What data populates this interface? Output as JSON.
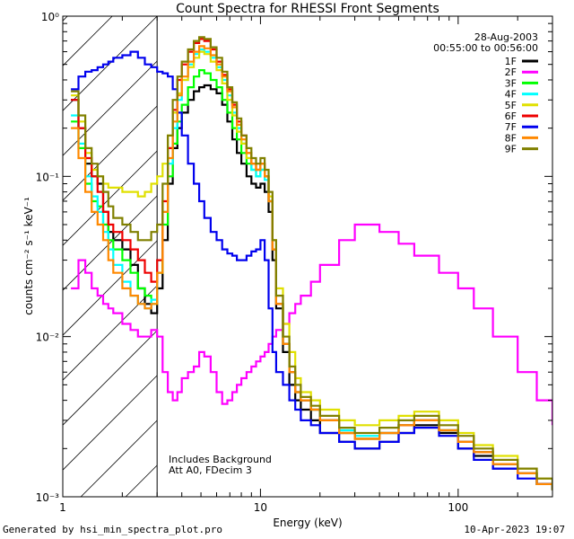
{
  "chart_data": {
    "type": "line",
    "title": "Count Spectra for RHESSI Front Segments",
    "xlabel": "Energy (keV)",
    "ylabel": "counts cm⁻² s⁻¹ keV⁻¹",
    "xscale": "log",
    "yscale": "log",
    "xlim": [
      1,
      300
    ],
    "ylim": [
      0.001,
      1
    ],
    "x_ticks": [
      "1",
      "10",
      "100"
    ],
    "y_ticks": [
      "10⁻³",
      "10⁻²",
      "10⁻¹",
      "10⁰"
    ],
    "date": "28-Aug-2003",
    "time_range": "00:55:00 to 00:56:00",
    "excluded_region_kev": [
      1,
      3
    ],
    "annotations": [
      "Includes Background",
      "Att A0, FDecim 3"
    ],
    "legend_position": "top-right",
    "series": [
      {
        "name": "1F",
        "color": "#000000",
        "x": [
          1.1,
          1.2,
          1.3,
          1.4,
          1.5,
          1.6,
          1.7,
          1.8,
          2.0,
          2.2,
          2.4,
          2.6,
          2.8,
          3.0,
          3.2,
          3.4,
          3.6,
          3.8,
          4.0,
          4.3,
          4.6,
          4.9,
          5.2,
          5.6,
          6.0,
          6.4,
          6.8,
          7.2,
          7.6,
          8.0,
          8.5,
          9.0,
          9.5,
          10,
          10.5,
          11,
          11.5,
          12,
          13,
          14,
          15,
          16,
          18,
          20,
          25,
          30,
          40,
          50,
          60,
          80,
          100,
          120,
          150,
          200,
          250,
          300
        ],
        "y": [
          0.3,
          0.2,
          0.12,
          0.1,
          0.09,
          0.06,
          0.045,
          0.04,
          0.035,
          0.028,
          0.02,
          0.016,
          0.014,
          0.02,
          0.04,
          0.09,
          0.15,
          0.2,
          0.25,
          0.3,
          0.34,
          0.36,
          0.37,
          0.35,
          0.33,
          0.28,
          0.22,
          0.17,
          0.14,
          0.12,
          0.1,
          0.09,
          0.085,
          0.09,
          0.08,
          0.06,
          0.03,
          0.015,
          0.008,
          0.005,
          0.004,
          0.0035,
          0.003,
          0.0025,
          0.0022,
          0.002,
          0.0022,
          0.0025,
          0.0028,
          0.0025,
          0.002,
          0.0018,
          0.0015,
          0.0014,
          0.0012,
          0.0011
        ]
      },
      {
        "name": "2F",
        "color": "#ff00ff",
        "x": [
          1.1,
          1.2,
          1.3,
          1.4,
          1.5,
          1.6,
          1.7,
          1.8,
          2.0,
          2.2,
          2.4,
          2.6,
          2.8,
          3.0,
          3.2,
          3.4,
          3.6,
          3.8,
          4.0,
          4.3,
          4.6,
          4.9,
          5.2,
          5.6,
          6.0,
          6.4,
          6.8,
          7.2,
          7.6,
          8.0,
          8.5,
          9.0,
          9.5,
          10,
          10.5,
          11,
          11.5,
          12,
          13,
          14,
          15,
          16,
          18,
          20,
          25,
          30,
          40,
          50,
          60,
          80,
          100,
          120,
          150,
          200,
          250,
          300
        ],
        "y": [
          0.02,
          0.03,
          0.025,
          0.02,
          0.018,
          0.016,
          0.015,
          0.014,
          0.012,
          0.011,
          0.01,
          0.01,
          0.011,
          0.01,
          0.006,
          0.0045,
          0.004,
          0.0045,
          0.0055,
          0.006,
          0.0065,
          0.008,
          0.0075,
          0.006,
          0.0045,
          0.0038,
          0.004,
          0.0045,
          0.005,
          0.0055,
          0.006,
          0.0065,
          0.007,
          0.0075,
          0.008,
          0.009,
          0.01,
          0.011,
          0.012,
          0.014,
          0.016,
          0.018,
          0.022,
          0.028,
          0.04,
          0.05,
          0.045,
          0.038,
          0.032,
          0.025,
          0.02,
          0.015,
          0.01,
          0.006,
          0.004,
          0.0028
        ]
      },
      {
        "name": "3F",
        "color": "#00ff00",
        "x": [
          1.1,
          1.2,
          1.3,
          1.4,
          1.5,
          1.6,
          1.7,
          1.8,
          2.0,
          2.2,
          2.4,
          2.6,
          2.8,
          3.0,
          3.2,
          3.4,
          3.6,
          3.8,
          4.0,
          4.3,
          4.6,
          4.9,
          5.2,
          5.6,
          6.0,
          6.4,
          6.8,
          7.2,
          7.6,
          8.0,
          8.5,
          9.0,
          9.5,
          10,
          10.5,
          11,
          11.5,
          12,
          13,
          14,
          15,
          16,
          18,
          20,
          25,
          30,
          40,
          50,
          60,
          80,
          100,
          120,
          150,
          200,
          250,
          300
        ],
        "y": [
          0.22,
          0.15,
          0.09,
          0.07,
          0.065,
          0.05,
          0.04,
          0.035,
          0.03,
          0.025,
          0.02,
          0.018,
          0.016,
          0.025,
          0.05,
          0.1,
          0.16,
          0.22,
          0.28,
          0.36,
          0.42,
          0.46,
          0.44,
          0.4,
          0.36,
          0.3,
          0.25,
          0.2,
          0.17,
          0.14,
          0.12,
          0.11,
          0.1,
          0.11,
          0.1,
          0.07,
          0.035,
          0.016,
          0.009,
          0.006,
          0.0045,
          0.004,
          0.0035,
          0.003,
          0.0025,
          0.0023,
          0.0025,
          0.0028,
          0.003,
          0.0026,
          0.0022,
          0.0019,
          0.0016,
          0.0014,
          0.0012,
          0.0011
        ]
      },
      {
        "name": "4F",
        "color": "#00ffff",
        "x": [
          1.1,
          1.2,
          1.3,
          1.4,
          1.5,
          1.6,
          1.7,
          1.8,
          2.0,
          2.2,
          2.4,
          2.6,
          2.8,
          3.0,
          3.2,
          3.4,
          3.6,
          3.8,
          4.0,
          4.3,
          4.6,
          4.9,
          5.2,
          5.6,
          6.0,
          6.4,
          6.8,
          7.2,
          7.6,
          8.0,
          8.5,
          9.0,
          9.5,
          10,
          10.5,
          11,
          11.5,
          12,
          13,
          14,
          15,
          16,
          18,
          20,
          25,
          30,
          40,
          50,
          60,
          80,
          100,
          120,
          150,
          200,
          250,
          300
        ],
        "y": [
          0.24,
          0.16,
          0.1,
          0.075,
          0.06,
          0.045,
          0.035,
          0.028,
          0.022,
          0.018,
          0.016,
          0.015,
          0.017,
          0.03,
          0.06,
          0.12,
          0.2,
          0.3,
          0.4,
          0.5,
          0.58,
          0.62,
          0.6,
          0.55,
          0.48,
          0.4,
          0.32,
          0.25,
          0.2,
          0.16,
          0.13,
          0.11,
          0.1,
          0.11,
          0.095,
          0.07,
          0.035,
          0.016,
          0.009,
          0.006,
          0.0045,
          0.004,
          0.0035,
          0.003,
          0.0026,
          0.0024,
          0.0025,
          0.0028,
          0.003,
          0.0026,
          0.0022,
          0.0019,
          0.0016,
          0.0014,
          0.0012,
          0.0011
        ]
      },
      {
        "name": "5F",
        "color": "#e0e000",
        "x": [
          1.1,
          1.2,
          1.3,
          1.4,
          1.5,
          1.6,
          1.7,
          1.8,
          2.0,
          2.2,
          2.4,
          2.6,
          2.8,
          3.0,
          3.2,
          3.4,
          3.6,
          3.8,
          4.0,
          4.3,
          4.6,
          4.9,
          5.2,
          5.6,
          6.0,
          6.4,
          6.8,
          7.2,
          7.6,
          8.0,
          8.5,
          9.0,
          9.5,
          10,
          10.5,
          11,
          11.5,
          12,
          13,
          14,
          15,
          16,
          18,
          20,
          25,
          30,
          40,
          50,
          60,
          80,
          100,
          120,
          150,
          200,
          250,
          300
        ],
        "y": [
          0.32,
          0.22,
          0.14,
          0.11,
          0.1,
          0.09,
          0.085,
          0.085,
          0.08,
          0.08,
          0.075,
          0.08,
          0.09,
          0.1,
          0.12,
          0.18,
          0.25,
          0.33,
          0.4,
          0.48,
          0.55,
          0.6,
          0.58,
          0.52,
          0.46,
          0.38,
          0.3,
          0.24,
          0.19,
          0.16,
          0.13,
          0.12,
          0.11,
          0.12,
          0.1,
          0.075,
          0.04,
          0.02,
          0.012,
          0.008,
          0.0055,
          0.0045,
          0.004,
          0.0035,
          0.003,
          0.0028,
          0.003,
          0.0032,
          0.0034,
          0.003,
          0.0025,
          0.0021,
          0.0018,
          0.0015,
          0.0013,
          0.0011
        ]
      },
      {
        "name": "6F",
        "color": "#ee0000",
        "x": [
          1.1,
          1.2,
          1.3,
          1.4,
          1.5,
          1.6,
          1.7,
          1.8,
          2.0,
          2.2,
          2.4,
          2.6,
          2.8,
          3.0,
          3.2,
          3.4,
          3.6,
          3.8,
          4.0,
          4.3,
          4.6,
          4.9,
          5.2,
          5.6,
          6.0,
          6.4,
          6.8,
          7.2,
          7.6,
          8.0,
          8.5,
          9.0,
          9.5,
          10,
          10.5,
          11,
          11.5,
          12,
          13,
          14,
          15,
          16,
          18,
          20,
          25,
          30,
          40,
          50,
          60,
          80,
          100,
          120,
          150,
          200,
          250,
          300
        ],
        "y": [
          0.3,
          0.2,
          0.13,
          0.1,
          0.08,
          0.06,
          0.05,
          0.045,
          0.04,
          0.035,
          0.03,
          0.025,
          0.022,
          0.03,
          0.07,
          0.15,
          0.26,
          0.4,
          0.5,
          0.6,
          0.68,
          0.72,
          0.7,
          0.62,
          0.52,
          0.43,
          0.35,
          0.28,
          0.22,
          0.18,
          0.14,
          0.12,
          0.11,
          0.12,
          0.1,
          0.07,
          0.035,
          0.016,
          0.009,
          0.006,
          0.0045,
          0.004,
          0.0035,
          0.003,
          0.0025,
          0.0023,
          0.0025,
          0.0028,
          0.003,
          0.0026,
          0.0022,
          0.0019,
          0.0016,
          0.0014,
          0.0012,
          0.0011
        ]
      },
      {
        "name": "7F",
        "color": "#0000ee",
        "x": [
          1.1,
          1.2,
          1.3,
          1.4,
          1.5,
          1.6,
          1.7,
          1.8,
          2.0,
          2.2,
          2.4,
          2.6,
          2.8,
          3.0,
          3.2,
          3.4,
          3.6,
          3.8,
          4.0,
          4.3,
          4.6,
          4.9,
          5.2,
          5.6,
          6.0,
          6.4,
          6.8,
          7.2,
          7.6,
          8.0,
          8.5,
          9.0,
          9.5,
          10,
          10.5,
          11,
          11.5,
          12,
          13,
          14,
          15,
          16,
          18,
          20,
          25,
          30,
          40,
          50,
          60,
          80,
          100,
          120,
          150,
          200,
          250,
          300
        ],
        "y": [
          0.35,
          0.42,
          0.45,
          0.46,
          0.48,
          0.5,
          0.52,
          0.55,
          0.57,
          0.6,
          0.55,
          0.5,
          0.48,
          0.45,
          0.44,
          0.42,
          0.35,
          0.25,
          0.18,
          0.12,
          0.09,
          0.07,
          0.055,
          0.045,
          0.04,
          0.035,
          0.033,
          0.032,
          0.03,
          0.03,
          0.032,
          0.034,
          0.035,
          0.04,
          0.03,
          0.015,
          0.008,
          0.006,
          0.005,
          0.004,
          0.0035,
          0.003,
          0.0028,
          0.0025,
          0.0022,
          0.002,
          0.0022,
          0.0025,
          0.0027,
          0.0024,
          0.002,
          0.0017,
          0.0015,
          0.0013,
          0.0012,
          0.0011
        ]
      },
      {
        "name": "8F",
        "color": "#ff8800",
        "x": [
          1.1,
          1.2,
          1.3,
          1.4,
          1.5,
          1.6,
          1.7,
          1.8,
          2.0,
          2.2,
          2.4,
          2.6,
          2.8,
          3.0,
          3.2,
          3.4,
          3.6,
          3.8,
          4.0,
          4.3,
          4.6,
          4.9,
          5.2,
          5.6,
          6.0,
          6.4,
          6.8,
          7.2,
          7.6,
          8.0,
          8.5,
          9.0,
          9.5,
          10,
          10.5,
          11,
          11.5,
          12,
          13,
          14,
          15,
          16,
          18,
          20,
          25,
          30,
          40,
          50,
          60,
          80,
          100,
          120,
          150,
          200,
          250,
          300
        ],
        "y": [
          0.2,
          0.13,
          0.08,
          0.06,
          0.05,
          0.04,
          0.03,
          0.025,
          0.02,
          0.018,
          0.016,
          0.015,
          0.016,
          0.025,
          0.06,
          0.13,
          0.22,
          0.32,
          0.42,
          0.52,
          0.6,
          0.65,
          0.63,
          0.57,
          0.5,
          0.42,
          0.34,
          0.27,
          0.21,
          0.17,
          0.14,
          0.12,
          0.11,
          0.12,
          0.1,
          0.07,
          0.035,
          0.016,
          0.009,
          0.006,
          0.0045,
          0.004,
          0.0035,
          0.003,
          0.0025,
          0.0023,
          0.0025,
          0.0028,
          0.003,
          0.0026,
          0.0022,
          0.0019,
          0.0016,
          0.0014,
          0.0012,
          0.0011
        ]
      },
      {
        "name": "9F",
        "color": "#808000",
        "x": [
          1.1,
          1.2,
          1.3,
          1.4,
          1.5,
          1.6,
          1.7,
          1.8,
          2.0,
          2.2,
          2.4,
          2.6,
          2.8,
          3.0,
          3.2,
          3.4,
          3.6,
          3.8,
          4.0,
          4.3,
          4.6,
          4.9,
          5.2,
          5.6,
          6.0,
          6.4,
          6.8,
          7.2,
          7.6,
          8.0,
          8.5,
          9.0,
          9.5,
          10,
          10.5,
          11,
          11.5,
          12,
          13,
          14,
          15,
          16,
          18,
          20,
          25,
          30,
          40,
          50,
          60,
          80,
          100,
          120,
          150,
          200,
          250,
          300
        ],
        "y": [
          0.34,
          0.24,
          0.15,
          0.12,
          0.1,
          0.08,
          0.065,
          0.055,
          0.05,
          0.045,
          0.04,
          0.04,
          0.045,
          0.05,
          0.09,
          0.18,
          0.3,
          0.42,
          0.52,
          0.62,
          0.7,
          0.74,
          0.72,
          0.64,
          0.55,
          0.45,
          0.36,
          0.29,
          0.23,
          0.18,
          0.15,
          0.13,
          0.12,
          0.13,
          0.11,
          0.08,
          0.04,
          0.018,
          0.01,
          0.0065,
          0.005,
          0.0042,
          0.0037,
          0.0032,
          0.0027,
          0.0025,
          0.0027,
          0.003,
          0.0032,
          0.0028,
          0.0024,
          0.002,
          0.0017,
          0.0015,
          0.0013,
          0.0011
        ]
      }
    ]
  },
  "footer": {
    "left": "Generated by hsi_min_spectra_plot.pro",
    "right": "10-Apr-2023 19:07"
  }
}
